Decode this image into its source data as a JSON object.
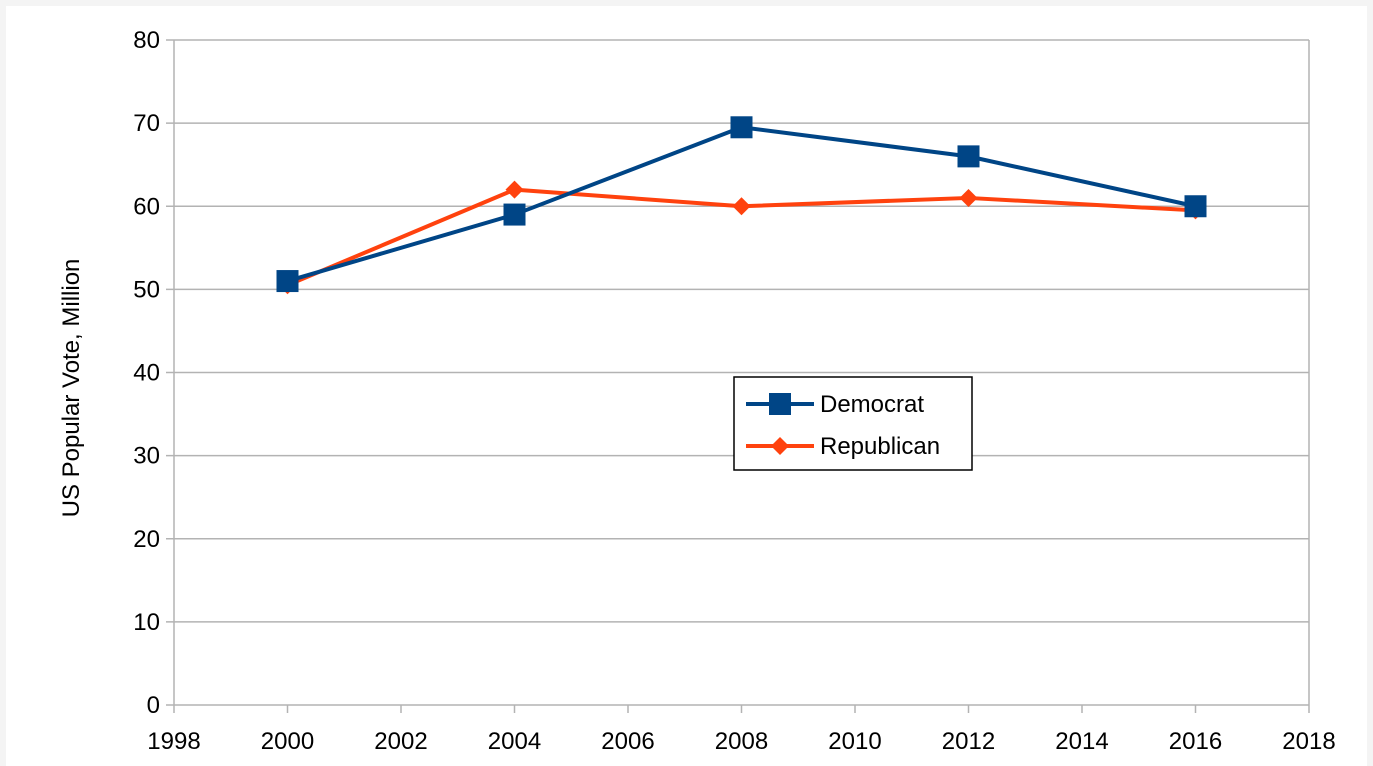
{
  "chart_data": {
    "type": "line",
    "title": "",
    "xlabel": "",
    "ylabel": "US Popular Vote, Million",
    "xlim": [
      1998,
      2018
    ],
    "ylim": [
      0,
      80
    ],
    "x_ticks": [
      "1998",
      "2000",
      "2002",
      "2004",
      "2006",
      "2008",
      "2010",
      "2012",
      "2014",
      "2016",
      "2018"
    ],
    "y_ticks": [
      "0",
      "10",
      "20",
      "30",
      "40",
      "50",
      "60",
      "70",
      "80"
    ],
    "grid": "horizontal",
    "legend_position": "center-right",
    "series": [
      {
        "name": "Democrat",
        "color": "#004586",
        "marker": "square",
        "x": [
          2000,
          2004,
          2008,
          2012,
          2016
        ],
        "y": [
          51.0,
          59.0,
          69.5,
          66.0,
          60.0
        ]
      },
      {
        "name": "Republican",
        "color": "#ff420e",
        "marker": "diamond",
        "x": [
          2000,
          2004,
          2008,
          2012,
          2016
        ],
        "y": [
          50.5,
          62.0,
          60.0,
          61.0,
          59.5
        ]
      }
    ]
  }
}
